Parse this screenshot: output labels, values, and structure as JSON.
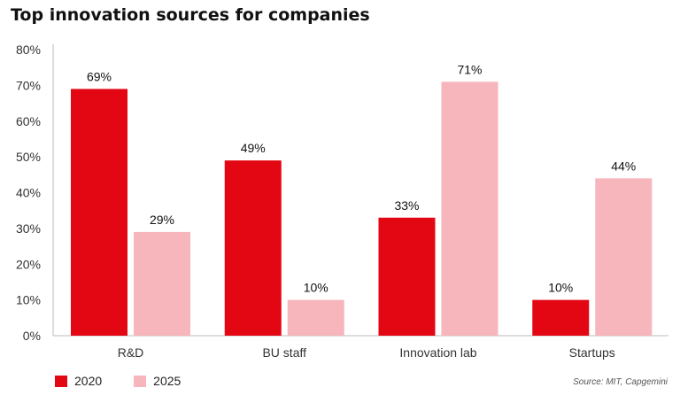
{
  "title": "Top innovation sources for companies",
  "source": "Source: MIT, Capgemini",
  "colors": {
    "2020": "#e30613",
    "2025": "#f6b6bb",
    "axis": "#bbbbbb",
    "text": "#333333"
  },
  "chart_data": {
    "type": "bar",
    "title": "Top innovation sources for companies",
    "categories": [
      "R&D",
      "BU staff",
      "Innovation lab",
      "Startups"
    ],
    "series": [
      {
        "name": "2020",
        "values": [
          69,
          49,
          33,
          10
        ],
        "labels": [
          "69%",
          "49%",
          "33%",
          "10%"
        ]
      },
      {
        "name": "2025",
        "values": [
          29,
          10,
          71,
          44
        ],
        "labels": [
          "29%",
          "10%",
          "71%",
          "44%"
        ]
      }
    ],
    "yticks": [
      "0%",
      "10%",
      "20%",
      "30%",
      "40%",
      "50%",
      "60%",
      "70%",
      "80%"
    ],
    "ylim": [
      0,
      80
    ],
    "grid": false,
    "legend": "bottom-left"
  }
}
